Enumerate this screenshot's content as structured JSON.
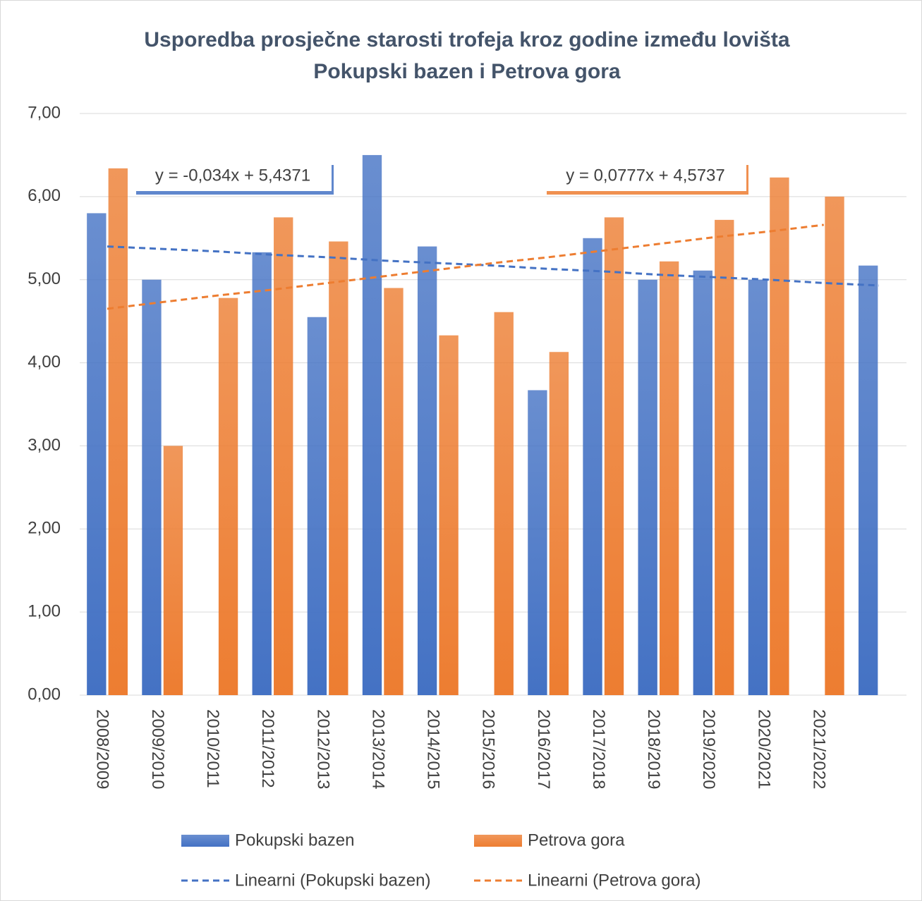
{
  "chart_data": {
    "type": "bar",
    "title": "Usporedba prosječne starosti trofeja kroz godine između lovišta",
    "subtitle": "Pokupski bazen i Petrova gora",
    "categories": [
      "2008/2009",
      "2009/2010",
      "2010/2011",
      "2011/2012",
      "2012/2013",
      "2013/2014",
      "2014/2015",
      "2015/2016",
      "2016/2017",
      "2017/2018",
      "2018/2019",
      "2019/2020",
      "2020/2021",
      "2021/2022",
      null
    ],
    "series": [
      {
        "name": "Pokupski bazen",
        "color": "#4472c4",
        "values": [
          5.8,
          5.0,
          null,
          5.33,
          4.55,
          6.5,
          5.4,
          null,
          3.67,
          5.5,
          5.0,
          5.11,
          5.0,
          null,
          5.17
        ]
      },
      {
        "name": "Petrova gora",
        "color": "#ed7d31",
        "values": [
          6.34,
          3.0,
          4.78,
          5.75,
          5.46,
          4.9,
          4.33,
          4.61,
          4.13,
          5.75,
          5.22,
          5.72,
          6.23,
          6.0,
          null
        ]
      }
    ],
    "trendlines": [
      {
        "name": "Linearni (Pokupski bazen)",
        "color": "#4472c4",
        "equation": "y = -0,034x + 5,4371",
        "values": [
          5.4,
          5.37,
          5.34,
          5.3,
          5.27,
          5.23,
          5.2,
          5.17,
          5.13,
          5.1,
          5.06,
          5.03,
          5.0,
          4.96,
          4.93
        ]
      },
      {
        "name": "Linearni (Petrova gora)",
        "color": "#ed7d31",
        "equation": "y = 0,0777x + 4,5737",
        "values": [
          4.65,
          4.73,
          4.81,
          4.88,
          4.96,
          5.04,
          5.12,
          5.2,
          5.27,
          5.35,
          5.43,
          5.51,
          5.58,
          5.66,
          null
        ]
      }
    ],
    "ylim": [
      0,
      7
    ],
    "yticks": [
      {
        "value": 0,
        "label": "0,00"
      },
      {
        "value": 1,
        "label": "1,00"
      },
      {
        "value": 2,
        "label": "2,00"
      },
      {
        "value": 3,
        "label": "3,00"
      },
      {
        "value": 4,
        "label": "4,00"
      },
      {
        "value": 5,
        "label": "5,00"
      },
      {
        "value": 6,
        "label": "6,00"
      },
      {
        "value": 7,
        "label": "7,00"
      }
    ],
    "grid": true,
    "legend": "bottom"
  }
}
